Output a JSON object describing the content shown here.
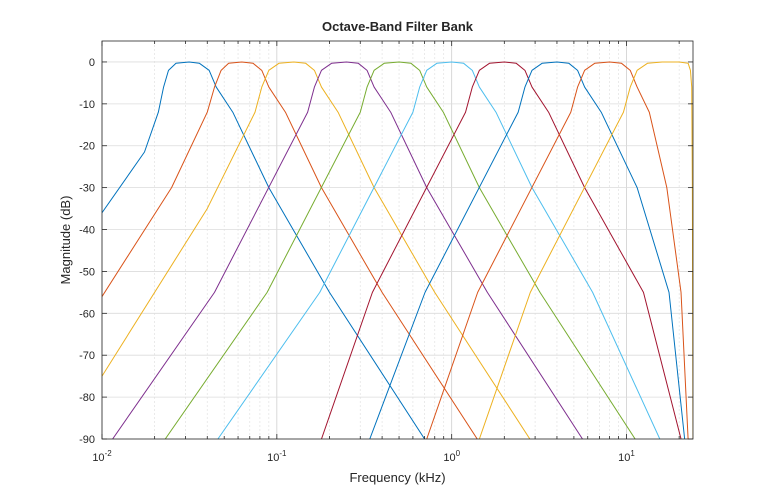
{
  "chart_data": {
    "type": "line",
    "title": "Octave-Band Filter Bank",
    "xlabel": "Frequency (kHz)",
    "ylabel": "Magnitude (dB)",
    "x_scale": "log",
    "xlim": [
      0.01,
      24
    ],
    "ylim": [
      -90,
      5
    ],
    "grid": true,
    "legend": "none",
    "x_tick_labels": [
      {
        "base": "10",
        "exp": "-2",
        "value": 0.01
      },
      {
        "base": "10",
        "exp": "-1",
        "value": 0.1
      },
      {
        "base": "10",
        "exp": "0",
        "value": 1
      },
      {
        "base": "10",
        "exp": "1",
        "value": 10
      }
    ],
    "y_ticks": [
      0,
      -10,
      -20,
      -30,
      -40,
      -50,
      -60,
      -70,
      -80,
      -90
    ],
    "colors": [
      "#0072BD",
      "#D95319",
      "#EDB120",
      "#7E2F8E",
      "#77AC30",
      "#4DBEEE",
      "#A2142F",
      "#0072BD",
      "#D95319",
      "#EDB120"
    ],
    "band_center_khz": [
      0.0315,
      0.063,
      0.125,
      0.25,
      0.5,
      1,
      2,
      4,
      8,
      16
    ],
    "slope_db_per_octave": 24,
    "passband_db": 0,
    "series": [
      {
        "x": [
          0.01,
          0.0175,
          0.021,
          0.0225,
          0.024,
          0.0265,
          0.0315,
          0.036,
          0.041,
          0.045,
          0.056,
          0.09,
          0.2,
          0.7
        ],
        "y": [
          -36,
          -21.5,
          -12,
          -6,
          -2,
          -0.3,
          0,
          -0.3,
          -2,
          -6,
          -12,
          -30,
          -55,
          -90
        ]
      },
      {
        "x": [
          0.01,
          0.025,
          0.04,
          0.044,
          0.048,
          0.053,
          0.063,
          0.073,
          0.082,
          0.09,
          0.112,
          0.18,
          0.4,
          1.4
        ],
        "y": [
          -56,
          -30,
          -12,
          -6,
          -2,
          -0.3,
          0,
          -0.3,
          -2,
          -6,
          -12,
          -30,
          -55,
          -90
        ]
      },
      {
        "x": [
          0.01,
          0.04,
          0.075,
          0.082,
          0.09,
          0.103,
          0.125,
          0.146,
          0.164,
          0.18,
          0.224,
          0.36,
          0.8,
          2.8
        ],
        "y": [
          -75,
          -35,
          -12,
          -6,
          -2,
          -0.3,
          0,
          -0.3,
          -2,
          -6,
          -12,
          -30,
          -55,
          -90
        ]
      },
      {
        "x": [
          0.0115,
          0.044,
          0.15,
          0.164,
          0.18,
          0.206,
          0.25,
          0.292,
          0.328,
          0.36,
          0.448,
          0.72,
          1.6,
          5.6
        ],
        "y": [
          -90,
          -55,
          -12,
          -6,
          -2,
          -0.3,
          0,
          -0.3,
          -2,
          -6,
          -12,
          -30,
          -55,
          -90
        ]
      },
      {
        "x": [
          0.023,
          0.088,
          0.3,
          0.328,
          0.36,
          0.412,
          0.5,
          0.584,
          0.656,
          0.72,
          0.896,
          1.44,
          3.2,
          11.2
        ],
        "y": [
          -90,
          -55,
          -12,
          -6,
          -2,
          -0.3,
          0,
          -0.3,
          -2,
          -6,
          -12,
          -30,
          -55,
          -90
        ]
      },
      {
        "x": [
          0.046,
          0.176,
          0.6,
          0.656,
          0.72,
          0.824,
          1,
          1.168,
          1.312,
          1.44,
          1.792,
          2.88,
          6.4,
          15.5
        ],
        "y": [
          -90,
          -55,
          -12,
          -6,
          -2,
          -0.3,
          0,
          -0.3,
          -2,
          -6,
          -12,
          -30,
          -55,
          -90
        ]
      },
      {
        "x": [
          0.18,
          0.352,
          1.2,
          1.312,
          1.44,
          1.648,
          2,
          2.336,
          2.624,
          2.88,
          3.584,
          5.76,
          12.5,
          20.5
        ],
        "y": [
          -90,
          -55,
          -12,
          -6,
          -2,
          -0.3,
          0,
          -0.3,
          -2,
          -6,
          -12,
          -30,
          -55,
          -90
        ]
      },
      {
        "x": [
          0.34,
          0.704,
          2.4,
          2.624,
          2.88,
          3.296,
          4,
          4.672,
          5.248,
          5.76,
          7.168,
          11.5,
          17.5,
          21.5
        ],
        "y": [
          -90,
          -55,
          -12,
          -6,
          -2,
          -0.3,
          0,
          -0.3,
          -2,
          -6,
          -12,
          -30,
          -55,
          -90
        ]
      },
      {
        "x": [
          0.72,
          1.408,
          4.8,
          5.248,
          5.76,
          6.592,
          8,
          9.344,
          10.5,
          11.5,
          13.5,
          17,
          20.5,
          22.5
        ],
        "y": [
          -90,
          -55,
          -12,
          -6,
          -2,
          -0.3,
          0,
          -0.3,
          -2,
          -6,
          -12,
          -30,
          -55,
          -90
        ]
      },
      {
        "x": [
          1.44,
          2.816,
          9.6,
          10.5,
          11.5,
          13.2,
          16,
          20,
          22.5,
          23.2,
          23.6,
          23.8,
          23.9,
          24
        ],
        "y": [
          -90,
          -55,
          -12,
          -6,
          -2,
          -0.3,
          0,
          0,
          -0.3,
          -2,
          -6,
          -30,
          -60,
          -90
        ]
      }
    ]
  }
}
